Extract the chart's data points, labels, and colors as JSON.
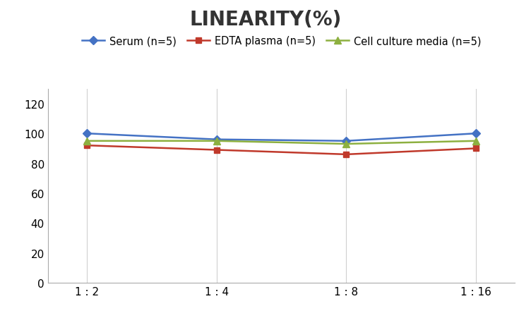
{
  "title": "LINEARITY(%)",
  "x_labels": [
    "1 : 2",
    "1 : 4",
    "1 : 8",
    "1 : 16"
  ],
  "x_positions": [
    0,
    1,
    2,
    3
  ],
  "series": [
    {
      "label": "Serum (n=5)",
      "values": [
        100,
        96,
        95,
        100
      ],
      "color": "#4472C4",
      "marker": "D",
      "markersize": 6,
      "linewidth": 1.8
    },
    {
      "label": "EDTA plasma (n=5)",
      "values": [
        92,
        89,
        86,
        90
      ],
      "color": "#C0392B",
      "marker": "s",
      "markersize": 6,
      "linewidth": 1.8
    },
    {
      "label": "Cell culture media (n=5)",
      "values": [
        95,
        95,
        93,
        95
      ],
      "color": "#8DB040",
      "marker": "^",
      "markersize": 7,
      "linewidth": 1.8
    }
  ],
  "ylim": [
    0,
    130
  ],
  "yticks": [
    0,
    20,
    40,
    60,
    80,
    100,
    120
  ],
  "grid_color": "#D0D0D0",
  "background_color": "#FFFFFF",
  "title_fontsize": 20,
  "title_fontweight": "bold",
  "legend_fontsize": 10.5,
  "tick_fontsize": 11
}
